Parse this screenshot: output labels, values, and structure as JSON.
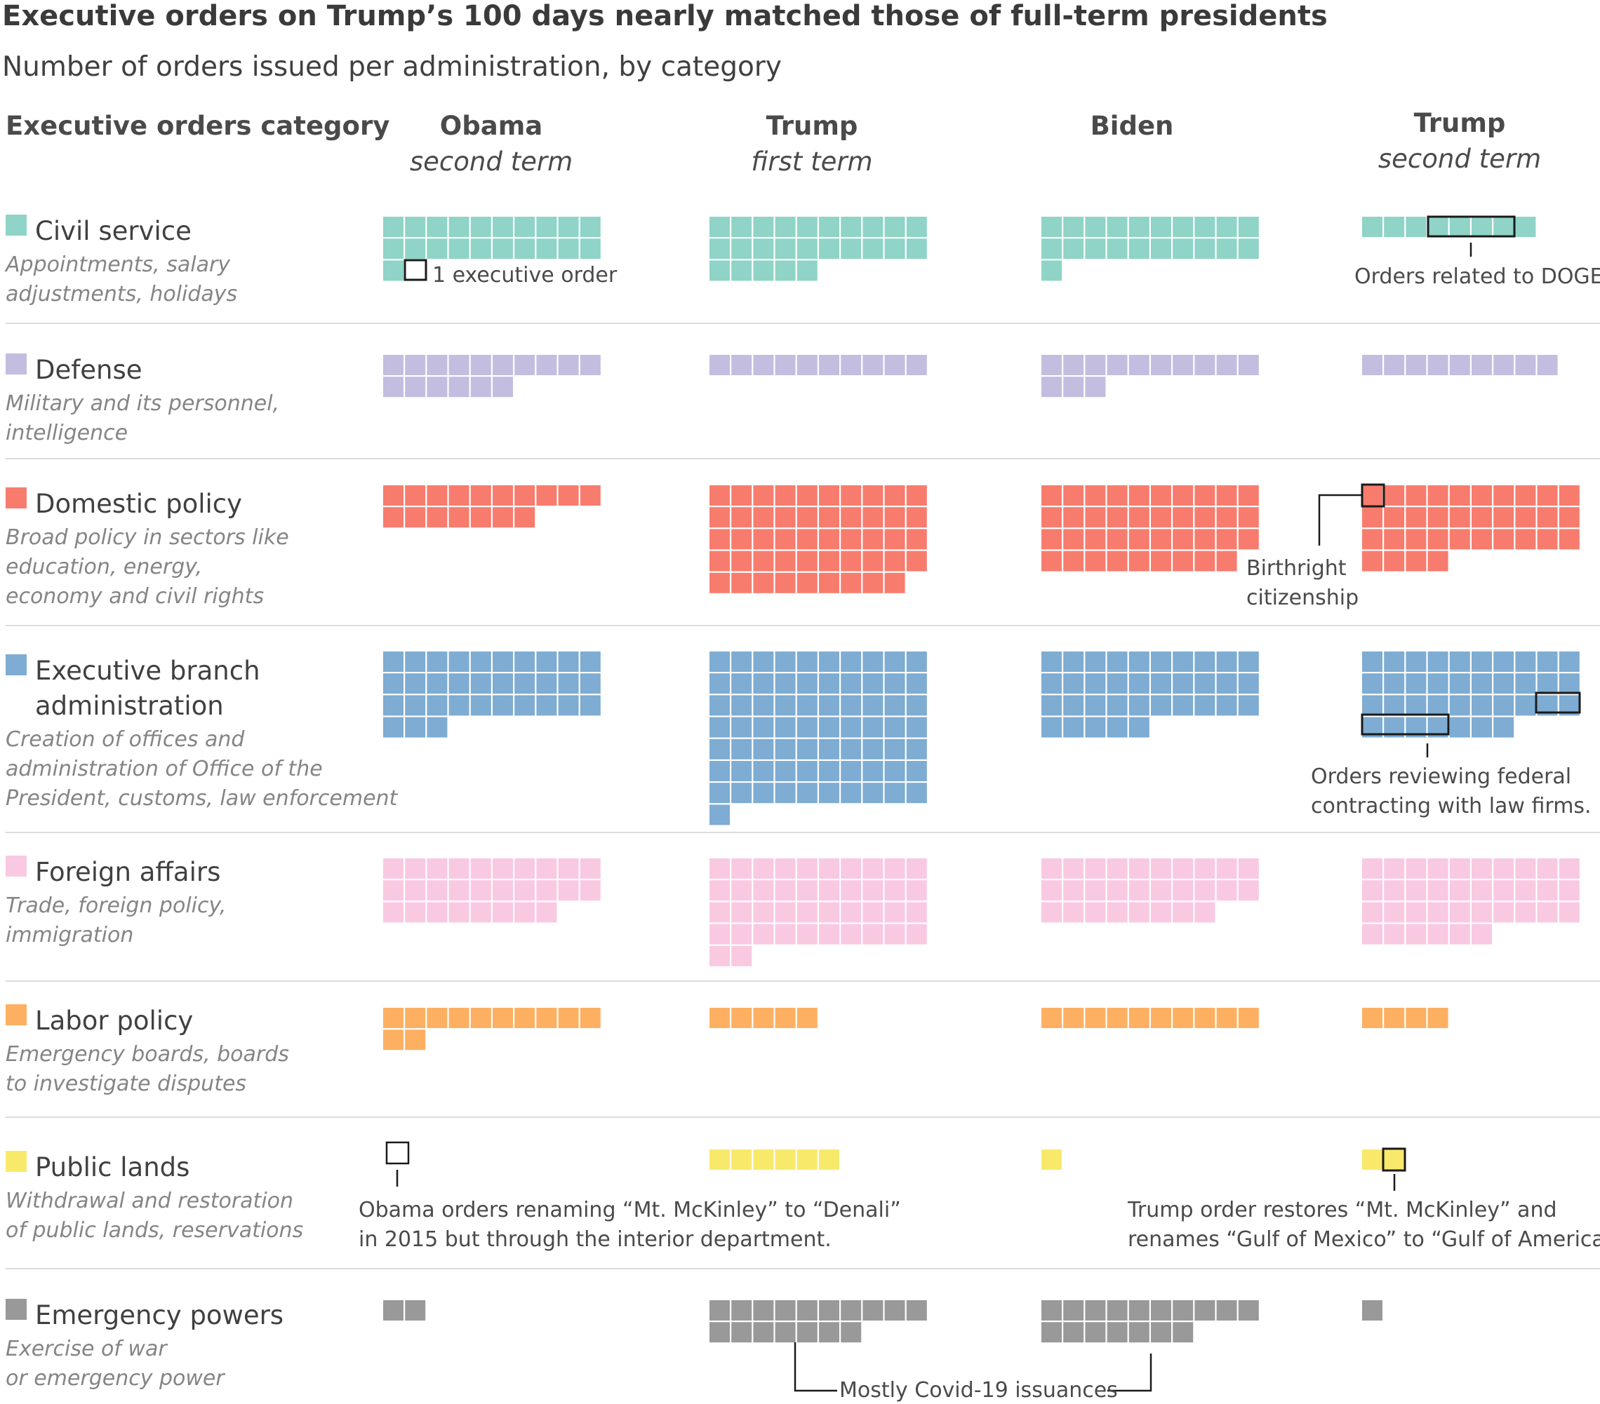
{
  "title": "Executive orders on Trump’s 100 days nearly matched those of full-term presidents",
  "subtitle": "Number of orders issued per administration, by category",
  "category_header": "Executive orders category",
  "columns": [
    {
      "name": "Obama",
      "term": "second term"
    },
    {
      "name": "Trump",
      "term": "first term"
    },
    {
      "name": "Biden",
      "term": ""
    },
    {
      "name": "Trump",
      "term": "second term"
    }
  ],
  "categories": [
    {
      "name": [
        "Civil service"
      ],
      "desc": [
        "Appointments, salary",
        "adjustments, holidays"
      ],
      "color": "#8fd4c6"
    },
    {
      "name": [
        "Defense"
      ],
      "desc": [
        "Military and its personnel,",
        "intelligence"
      ],
      "color": "#c3bde0"
    },
    {
      "name": [
        "Domestic policy"
      ],
      "desc": [
        "Broad policy in sectors like",
        "education, energy,",
        "economy and civil rights"
      ],
      "color": "#f77c6e"
    },
    {
      "name": [
        "Executive branch",
        "administration"
      ],
      "desc": [
        "Creation of offices and",
        "administration of Office of the",
        "President, customs, law enforcement"
      ],
      "color": "#7eacd2"
    },
    {
      "name": [
        "Foreign affairs"
      ],
      "desc": [
        "Trade, foreign policy,",
        "immigration"
      ],
      "color": "#f9c9e2"
    },
    {
      "name": [
        "Labor policy"
      ],
      "desc": [
        "Emergency boards, boards",
        "to investigate disputes"
      ],
      "color": "#fdb062"
    },
    {
      "name": [
        "Public lands"
      ],
      "desc": [
        "Withdrawal and restoration",
        "of public lands, reservations"
      ],
      "color": "#f9e96b"
    },
    {
      "name": [
        "Emergency powers"
      ],
      "desc": [
        "Exercise of war",
        "or emergency power"
      ],
      "color": "#999999"
    }
  ],
  "chart_data": {
    "type": "waffle",
    "unit": "1 executive order per square",
    "squares_per_row": 10,
    "series_order": [
      "Obama second term",
      "Trump first term",
      "Biden",
      "Trump second term"
    ],
    "counts": {
      "Civil service": [
        21,
        25,
        21,
        8
      ],
      "Defense": [
        16,
        10,
        13,
        9
      ],
      "Domestic policy": [
        17,
        49,
        39,
        34
      ],
      "Executive branch administration": [
        33,
        71,
        35,
        37
      ],
      "Foreign affairs": [
        28,
        42,
        28,
        36
      ],
      "Labor policy": [
        12,
        5,
        10,
        4
      ],
      "Public lands": [
        0,
        6,
        1,
        2
      ],
      "Emergency powers": [
        2,
        17,
        17,
        1
      ]
    }
  },
  "annotations": {
    "legend_unit": "1 executive order",
    "doge": "Orders related to DOGE",
    "birthright": [
      "Birthright",
      "citizenship"
    ],
    "law_firms": [
      "Orders reviewing federal",
      "contracting with law firms."
    ],
    "denali": [
      "Obama orders renaming “Mt. McKinley” to “Denali”",
      "in 2015 but through the interior department."
    ],
    "gulf": [
      "Trump order restores “Mt. McKinley” and",
      "renames “Gulf of Mexico” to “Gulf of America.”"
    ],
    "covid": "Mostly Covid-19 issuances"
  }
}
